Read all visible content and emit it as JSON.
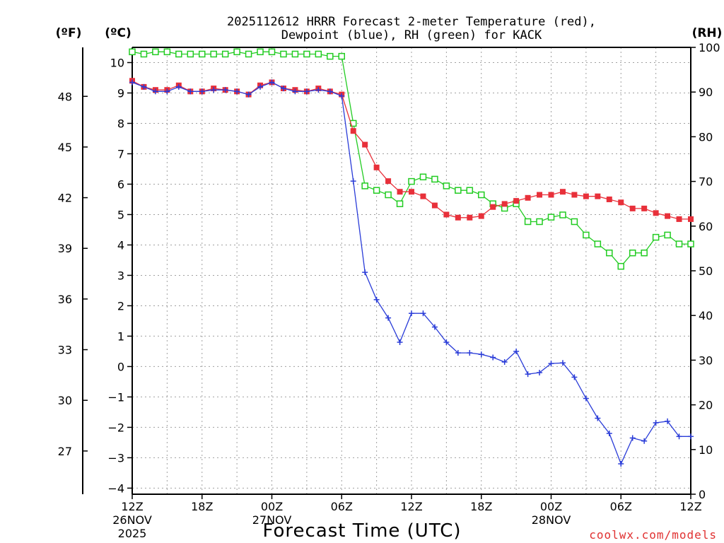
{
  "header": {
    "title_line1": "2025112612 HRRR Forecast 2-meter Temperature (red),",
    "title_line2": "Dewpoint (blue), RH (green) for KACK",
    "unit_f": "(ºF)",
    "unit_c": "(ºC)",
    "unit_rh": "(RH)"
  },
  "footer": {
    "xlabel": "Forecast Time (UTC)",
    "credit": "coolwx.com/models"
  },
  "colors": {
    "temperature": "#e8303a",
    "dewpoint": "#2a3cd8",
    "rh": "#22cc22",
    "axis": "#000000"
  },
  "chart_data": {
    "type": "line",
    "title": "2025112612 HRRR Forecast 2-meter Temperature (red), Dewpoint (blue), RH (green) for KACK",
    "xlabel": "Forecast Time (UTC)",
    "x_hours_from_start": [
      0,
      1,
      2,
      3,
      4,
      5,
      6,
      7,
      8,
      9,
      10,
      11,
      12,
      13,
      14,
      15,
      16,
      17,
      18,
      19,
      20,
      21,
      22,
      23,
      24,
      25,
      26,
      27,
      28,
      29,
      30,
      31,
      32,
      33,
      34,
      35,
      36,
      37,
      38,
      39,
      40,
      41,
      42,
      43,
      44,
      45,
      46,
      47,
      48
    ],
    "x_ticks": [
      {
        "hour": 0,
        "label": "12Z",
        "sub1": "26NOV",
        "sub2": "2025"
      },
      {
        "hour": 6,
        "label": "18Z",
        "sub1": "",
        "sub2": ""
      },
      {
        "hour": 12,
        "label": "00Z",
        "sub1": "27NOV",
        "sub2": ""
      },
      {
        "hour": 18,
        "label": "06Z",
        "sub1": "",
        "sub2": ""
      },
      {
        "hour": 24,
        "label": "12Z",
        "sub1": "",
        "sub2": ""
      },
      {
        "hour": 30,
        "label": "18Z",
        "sub1": "",
        "sub2": ""
      },
      {
        "hour": 36,
        "label": "00Z",
        "sub1": "28NOV",
        "sub2": ""
      },
      {
        "hour": 42,
        "label": "06Z",
        "sub1": "",
        "sub2": ""
      },
      {
        "hour": 48,
        "label": "12Z",
        "sub1": "",
        "sub2": ""
      }
    ],
    "xlim": [
      0,
      48
    ],
    "y_celsius": {
      "lim": [
        -4.2,
        10.5
      ],
      "ticks": [
        -4,
        -3,
        -2,
        -1,
        0,
        1,
        2,
        3,
        4,
        5,
        6,
        7,
        8,
        9,
        10
      ]
    },
    "y_fahrenheit": {
      "ticks": [
        27,
        30,
        33,
        36,
        39,
        42,
        45,
        48
      ]
    },
    "y_rh": {
      "lim": [
        0,
        100
      ],
      "ticks": [
        0,
        10,
        20,
        30,
        40,
        50,
        60,
        70,
        80,
        90,
        100
      ]
    },
    "grid": true,
    "series": [
      {
        "name": "Temperature",
        "axis": "celsius",
        "marker": "filled-square",
        "values": [
          9.4,
          9.2,
          9.1,
          9.1,
          9.25,
          9.05,
          9.05,
          9.15,
          9.1,
          9.05,
          8.95,
          9.25,
          9.35,
          9.15,
          9.1,
          9.05,
          9.15,
          9.05,
          8.95,
          7.75,
          7.3,
          6.55,
          6.1,
          5.75,
          5.75,
          5.6,
          5.3,
          5.0,
          4.9,
          4.9,
          4.95,
          5.25,
          5.35,
          5.45,
          5.55,
          5.65,
          5.65,
          5.75,
          5.65,
          5.6,
          5.6,
          5.5,
          5.4,
          5.2,
          5.2,
          5.05,
          4.95,
          4.85,
          4.85
        ]
      },
      {
        "name": "Dewpoint",
        "axis": "celsius",
        "marker": "plus",
        "values": [
          9.35,
          9.2,
          9.05,
          9.05,
          9.2,
          9.05,
          9.05,
          9.1,
          9.1,
          9.05,
          8.95,
          9.2,
          9.35,
          9.15,
          9.05,
          9.05,
          9.1,
          9.05,
          8.9,
          6.1,
          3.1,
          2.2,
          1.6,
          0.8,
          1.75,
          1.75,
          1.3,
          0.8,
          0.45,
          0.45,
          0.4,
          0.3,
          0.15,
          0.5,
          -0.25,
          -0.2,
          0.1,
          0.12,
          -0.35,
          -1.05,
          -1.7,
          -2.2,
          -3.2,
          -2.35,
          -2.45,
          -1.85,
          -1.8,
          -2.3,
          -2.3
        ]
      },
      {
        "name": "RH",
        "axis": "rh",
        "marker": "open-square",
        "values": [
          99,
          98.5,
          99,
          99,
          98.5,
          98.5,
          98.5,
          98.5,
          98.5,
          99,
          98.5,
          99,
          99,
          98.5,
          98.5,
          98.5,
          98.5,
          98,
          98,
          83,
          69,
          68,
          67,
          65,
          70,
          71,
          70.5,
          69,
          68,
          68,
          67,
          65,
          64,
          65,
          61,
          61,
          62,
          62.5,
          61,
          58,
          56,
          54,
          51,
          54,
          54,
          57.5,
          58,
          56,
          56
        ]
      }
    ]
  }
}
